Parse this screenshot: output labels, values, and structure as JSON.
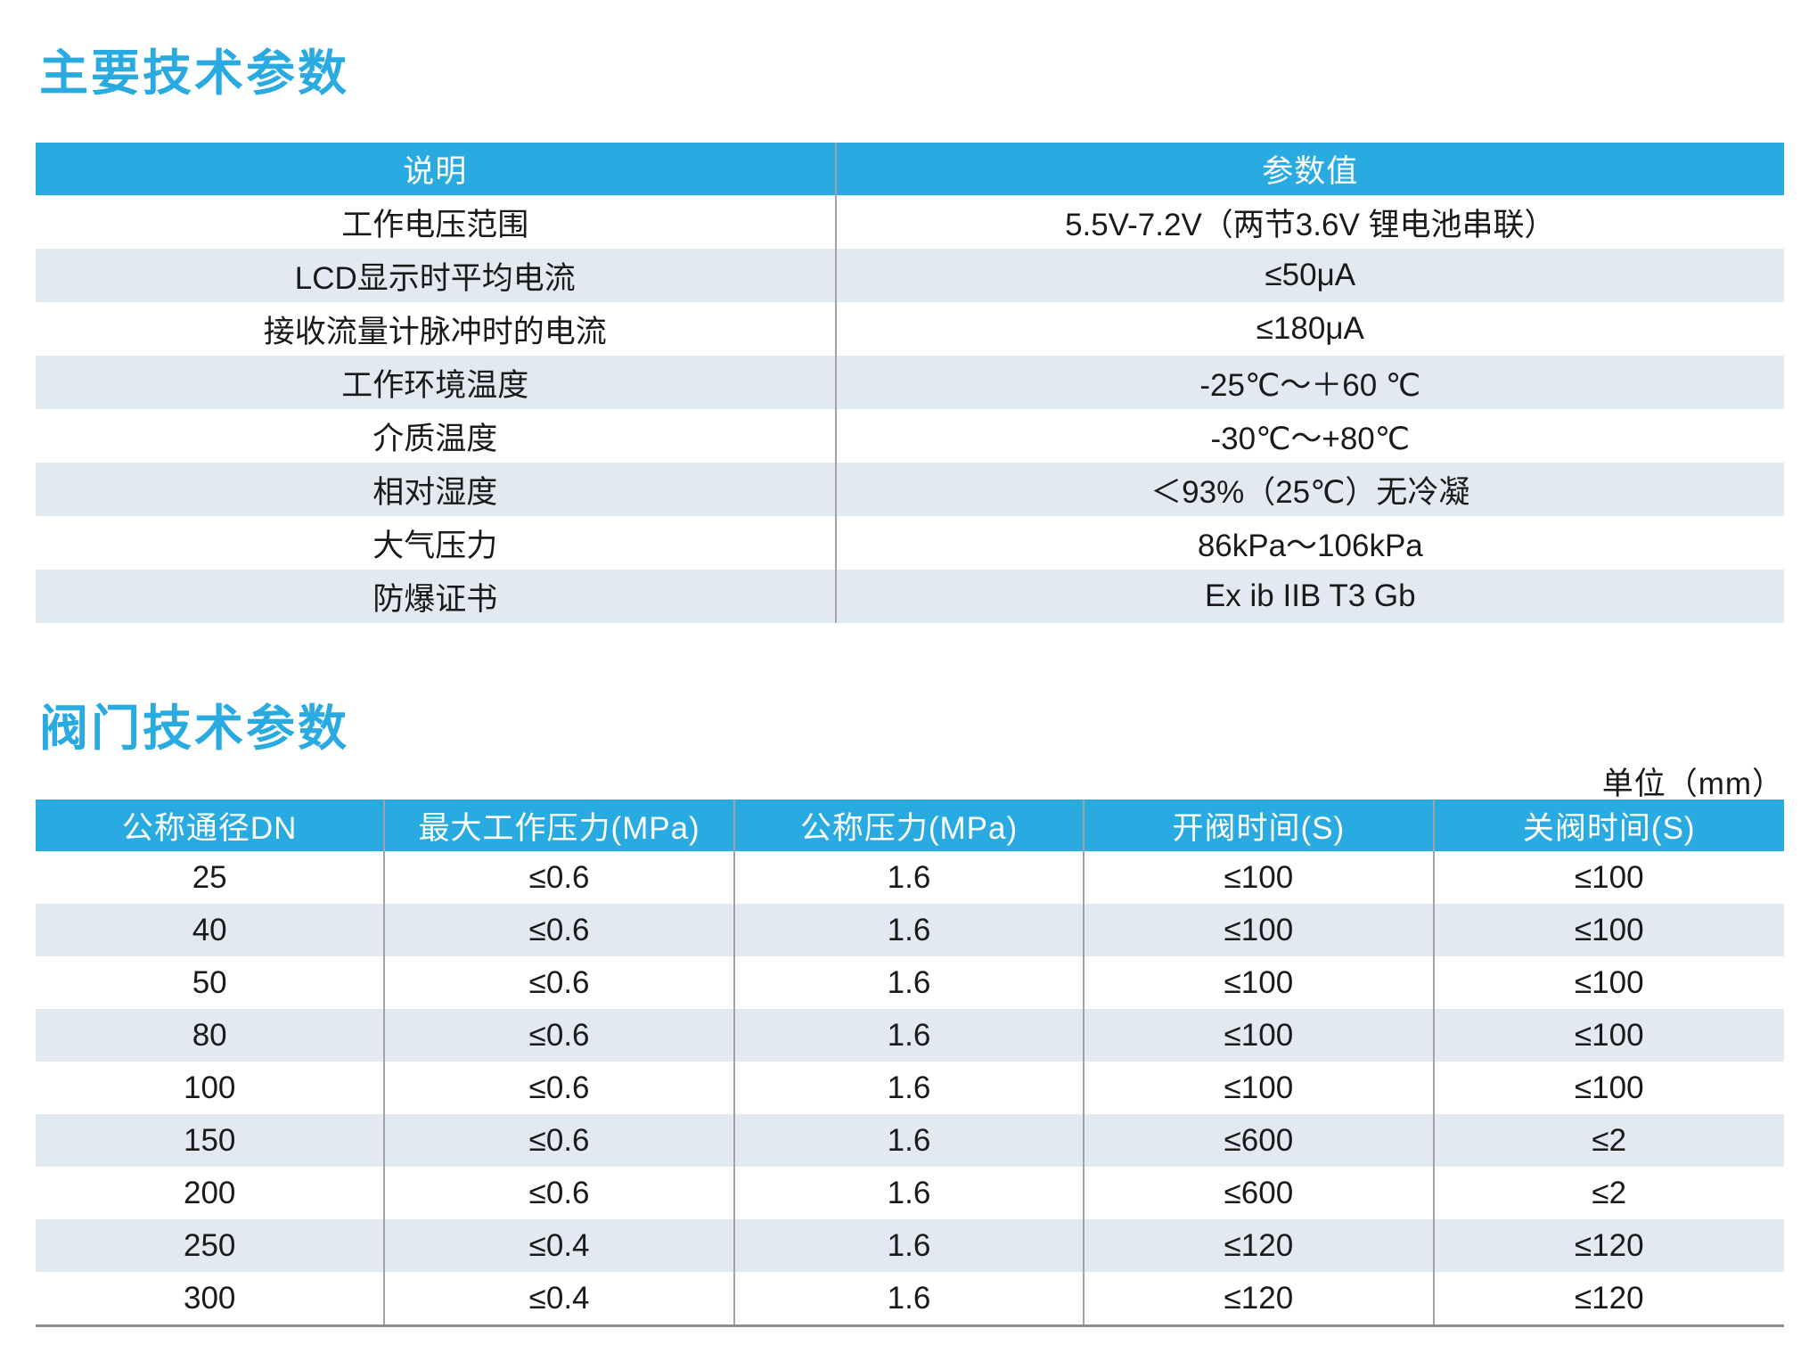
{
  "theme": {
    "accent_color": "#29ABE2",
    "alt_row_color": "#E2E9F1",
    "divider_color": "#A3A3A3",
    "header_text_color": "#FFFFFF"
  },
  "section1": {
    "title": "主要技术参数",
    "table": {
      "columns": [
        "说明",
        "参数值"
      ],
      "rows": [
        [
          "工作电压范围",
          "5.5V-7.2V（两节3.6V 锂电池串联）"
        ],
        [
          "LCD显示时平均电流",
          "≤50μA"
        ],
        [
          "接收流量计脉冲时的电流",
          "≤180μA"
        ],
        [
          "工作环境温度",
          "-25℃～＋60 ℃"
        ],
        [
          "介质温度",
          "-30℃～+80℃"
        ],
        [
          "相对湿度",
          "＜93%（25℃）无冷凝"
        ],
        [
          "大气压力",
          "86kPa～106kPa"
        ],
        [
          "防爆证书",
          "Ex ib IIB T3 Gb"
        ]
      ]
    }
  },
  "section2": {
    "title": "阀门技术参数",
    "unit_note": "单位（mm）",
    "table": {
      "columns": [
        "公称通径DN",
        "最大工作压力(MPa)",
        "公称压力(MPa)",
        "开阀时间(S)",
        "关阀时间(S)"
      ],
      "rows": [
        [
          "25",
          "≤0.6",
          "1.6",
          "≤100",
          "≤100"
        ],
        [
          "40",
          "≤0.6",
          "1.6",
          "≤100",
          "≤100"
        ],
        [
          "50",
          "≤0.6",
          "1.6",
          "≤100",
          "≤100"
        ],
        [
          "80",
          "≤0.6",
          "1.6",
          "≤100",
          "≤100"
        ],
        [
          "100",
          "≤0.6",
          "1.6",
          "≤100",
          "≤100"
        ],
        [
          "150",
          "≤0.6",
          "1.6",
          "≤600",
          "≤2"
        ],
        [
          "200",
          "≤0.6",
          "1.6",
          "≤600",
          "≤2"
        ],
        [
          "250",
          "≤0.4",
          "1.6",
          "≤120",
          "≤120"
        ],
        [
          "300",
          "≤0.4",
          "1.6",
          "≤120",
          "≤120"
        ]
      ]
    }
  }
}
